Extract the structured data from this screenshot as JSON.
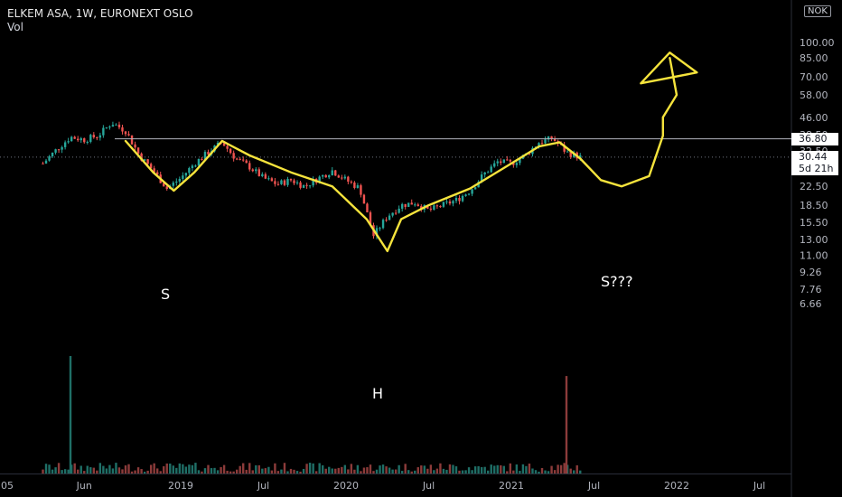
{
  "legend": {
    "symbol": "ELKEM ASA, 1W, EURONEXT OSLO",
    "volume_label": "Vol"
  },
  "currency": "NOK",
  "price_scale": {
    "ticks": [
      "100.00",
      "85.00",
      "70.00",
      "58.00",
      "46.00",
      "38.50",
      "32.50",
      "26.50",
      "22.50",
      "18.50",
      "15.50",
      "13.00",
      "11.00",
      "9.26",
      "7.76",
      "6.66"
    ],
    "tick_values": [
      100,
      85,
      70,
      58,
      46,
      38.5,
      32.5,
      26.5,
      22.5,
      18.5,
      15.5,
      13,
      11,
      9.26,
      7.76,
      6.66
    ]
  },
  "horizontal_line": {
    "value": 36.8,
    "label": "36.80"
  },
  "last_price": {
    "value": 30.44,
    "label": "30.44",
    "countdown": "5d 21h"
  },
  "time_axis": [
    "05",
    "Jun",
    "2019",
    "Jul",
    "2020",
    "Jul",
    "2021",
    "Jul",
    "2022",
    "Jul"
  ],
  "annotations": {
    "left_shoulder": "S",
    "head": "H",
    "right_shoulder": "S???"
  },
  "colors": {
    "up": "#26a69a",
    "down": "#ef5350",
    "drawing": "#f5e33c",
    "hline": "#b2b5be"
  },
  "chart_data": {
    "type": "candlestick",
    "title": "ELKEM ASA, 1W, EURONEXT OSLO",
    "y_scale": "log",
    "ylim": [
      6.3,
      104
    ],
    "x_range": [
      "2018-01",
      "2022-09"
    ],
    "pattern": "head and shoulders (inverse), drawn annotation",
    "price_path": [
      [
        "2018-03",
        28.5
      ],
      [
        "2018-04",
        33
      ],
      [
        "2018-05",
        37.5
      ],
      [
        "2018-06",
        36.5
      ],
      [
        "2018-07",
        38
      ],
      [
        "2018-08",
        43.5
      ],
      [
        "2018-09",
        40
      ],
      [
        "2018-10",
        31
      ],
      [
        "2018-11",
        26.5
      ],
      [
        "2018-12",
        22
      ],
      [
        "2019-01",
        24.5
      ],
      [
        "2019-02",
        28.5
      ],
      [
        "2019-03",
        32
      ],
      [
        "2019-04",
        35.5
      ],
      [
        "2019-05",
        30
      ],
      [
        "2019-06",
        27.5
      ],
      [
        "2019-07",
        24.5
      ],
      [
        "2019-08",
        23
      ],
      [
        "2019-09",
        24
      ],
      [
        "2019-10",
        22.5
      ],
      [
        "2019-11",
        24.5
      ],
      [
        "2019-12",
        26.5
      ],
      [
        "2020-01",
        24
      ],
      [
        "2020-02",
        22
      ],
      [
        "2020-03",
        13.5
      ],
      [
        "2020-04",
        16.5
      ],
      [
        "2020-05",
        18.5
      ],
      [
        "2020-06",
        19
      ],
      [
        "2020-07",
        17.5
      ],
      [
        "2020-08",
        18.5
      ],
      [
        "2020-09",
        19.5
      ],
      [
        "2020-10",
        21.5
      ],
      [
        "2020-11",
        25.5
      ],
      [
        "2020-12",
        29
      ],
      [
        "2021-01",
        28.5
      ],
      [
        "2021-02",
        31
      ],
      [
        "2021-03",
        35.5
      ],
      [
        "2021-04",
        37
      ],
      [
        "2021-05",
        32
      ],
      [
        "2021-06",
        30.44
      ]
    ],
    "volume_peaks": [
      {
        "x": "2018-05",
        "relative": 1.0
      },
      {
        "x": "2021-05",
        "relative": 0.83
      }
    ]
  }
}
